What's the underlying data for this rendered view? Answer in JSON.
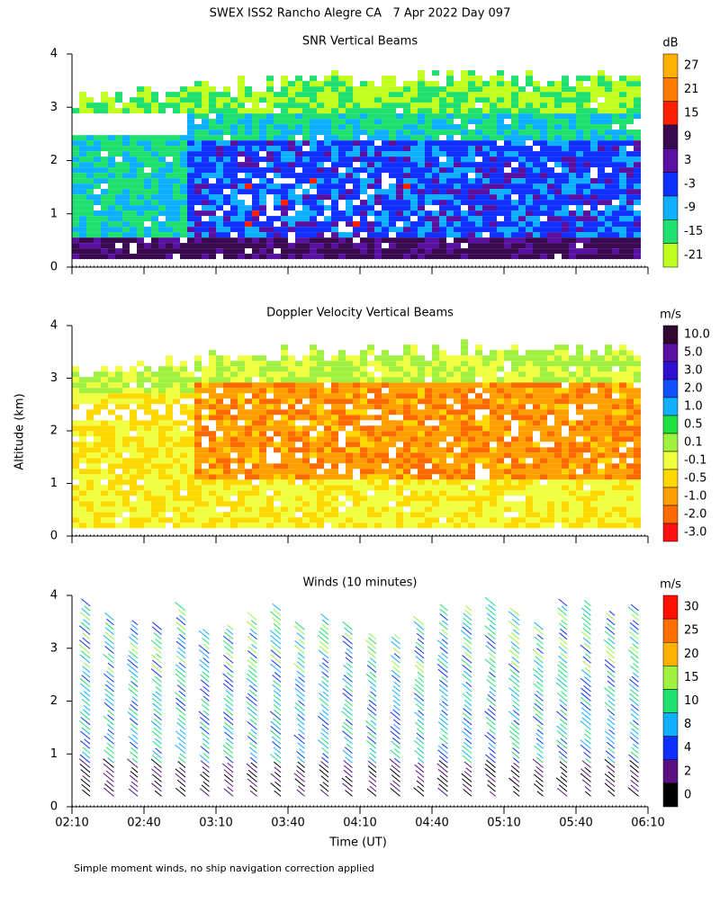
{
  "title": "SWEX ISS2 Rancho Alegre CA   7 Apr 2022 Day 097",
  "y_label": "Altitude (km)",
  "x_label": "Time (UT)",
  "footnote": "Simple moment winds, no ship navigation correction applied",
  "chart_data": [
    {
      "type": "heatmap",
      "title": "SNR Vertical Beams",
      "unit": "dB",
      "ylim": [
        0,
        4
      ],
      "yticks": [
        0,
        1,
        2,
        3,
        4
      ],
      "colorbar": {
        "ticks": [
          27,
          21,
          15,
          9,
          3,
          -3,
          -9,
          -15,
          -21
        ],
        "colors": [
          "#ffb000",
          "#ff7a00",
          "#ff2000",
          "#3a0a50",
          "#5a10a0",
          "#1030ff",
          "#10b0ff",
          "#20e070",
          "#c0ff20"
        ]
      }
    },
    {
      "type": "heatmap",
      "title": "Doppler Velocity Vertical Beams",
      "unit": "m/s",
      "ylim": [
        0,
        4
      ],
      "yticks": [
        0,
        1,
        2,
        3,
        4
      ],
      "colorbar": {
        "ticks": [
          {
            "value": 10,
            "label": "10.0"
          },
          {
            "value": 5,
            "label": "5.0"
          },
          {
            "value": 3,
            "label": "3.0"
          },
          {
            "value": 2,
            "label": "2.0"
          },
          {
            "value": 1,
            "label": "1.0"
          },
          0.5,
          0.1,
          -0.1,
          -0.5,
          {
            "value": -1,
            "label": "-1.0"
          },
          {
            "value": -2,
            "label": "-2.0"
          },
          {
            "value": -3,
            "label": "-3.0"
          }
        ],
        "colors": [
          "#300830",
          "#5a10a0",
          "#3010d0",
          "#1050ff",
          "#10b0ff",
          "#20e040",
          "#a0f040",
          "#f0ff40",
          "#ffd800",
          "#ffa000",
          "#ff6a00",
          "#ff1010"
        ]
      }
    },
    {
      "type": "barbs",
      "title": "Winds (10 minutes)",
      "unit": "m/s",
      "ylim": [
        0,
        4
      ],
      "yticks": [
        0,
        1,
        2,
        3,
        4
      ],
      "xticks": [
        "02:10",
        "02:40",
        "03:10",
        "03:40",
        "04:10",
        "04:40",
        "05:10",
        "05:40",
        "06:10"
      ],
      "colorbar": {
        "ticks": [
          30,
          25,
          20,
          15,
          10,
          8,
          4,
          2,
          0
        ],
        "colors": [
          "#ff1000",
          "#ff7000",
          "#ffb000",
          "#a0f040",
          "#20e070",
          "#10b0ff",
          "#1030ff",
          "#5a1080",
          "#000000"
        ]
      }
    }
  ]
}
